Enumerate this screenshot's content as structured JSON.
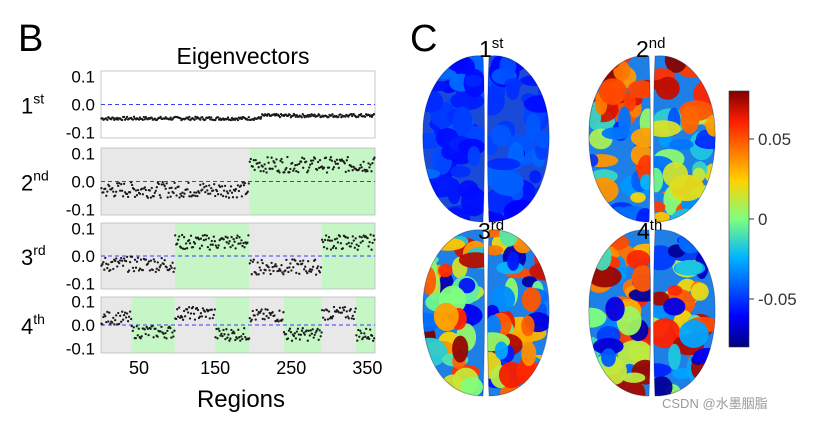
{
  "panel_b": {
    "letter": "B",
    "title": "Eigenvectors",
    "xlabel": "Regions"
  },
  "panel_c": {
    "letter": "C",
    "colorbar": {
      "ticks": [
        "0.05",
        "0",
        "-0.05"
      ],
      "range": [
        -0.08,
        0.08
      ]
    },
    "brain_labels": [
      {
        "num": "1",
        "sup": "st"
      },
      {
        "num": "2",
        "sup": "nd"
      },
      {
        "num": "3",
        "sup": "rd"
      },
      {
        "num": "4",
        "sup": "th"
      }
    ]
  },
  "watermark": "CSDN @水墨胭脂",
  "chart_data": {
    "type": "scatter",
    "title": "Eigenvectors",
    "xlabel": "Regions",
    "xlim": [
      0,
      360
    ],
    "x_ticks": [
      50,
      150,
      250,
      350
    ],
    "ylim": [
      -0.12,
      0.12
    ],
    "y_ticks": [
      "0.1",
      "0.0",
      "-0.1"
    ],
    "reference_line": 0.0,
    "subplots": [
      {
        "label": "1",
        "sup": "st",
        "segments": [
          {
            "x": [
              0,
              210
            ],
            "y_mean": -0.05,
            "band": "none"
          },
          {
            "x": [
              210,
              360
            ],
            "y_mean": -0.04,
            "band": "none"
          }
        ]
      },
      {
        "label": "2",
        "sup": "nd",
        "segments": [
          {
            "x": [
              0,
              195
            ],
            "y_mean": -0.03,
            "band": "gray"
          },
          {
            "x": [
              195,
              360
            ],
            "y_mean": 0.06,
            "band": "green"
          }
        ]
      },
      {
        "label": "3",
        "sup": "rd",
        "segments": [
          {
            "x": [
              0,
              97
            ],
            "y_mean": -0.03,
            "band": "gray"
          },
          {
            "x": [
              97,
              195
            ],
            "y_mean": 0.05,
            "band": "green"
          },
          {
            "x": [
              195,
              290
            ],
            "y_mean": -0.04,
            "band": "gray"
          },
          {
            "x": [
              290,
              360
            ],
            "y_mean": 0.05,
            "band": "green"
          }
        ]
      },
      {
        "label": "4",
        "sup": "th",
        "segments": [
          {
            "x": [
              0,
              40
            ],
            "y_mean": 0.03,
            "band": "gray"
          },
          {
            "x": [
              40,
              97
            ],
            "y_mean": -0.03,
            "band": "green"
          },
          {
            "x": [
              97,
              150
            ],
            "y_mean": 0.05,
            "band": "gray"
          },
          {
            "x": [
              150,
              195
            ],
            "y_mean": -0.04,
            "band": "green"
          },
          {
            "x": [
              195,
              240
            ],
            "y_mean": 0.04,
            "band": "gray"
          },
          {
            "x": [
              240,
              290
            ],
            "y_mean": -0.04,
            "band": "green"
          },
          {
            "x": [
              290,
              335
            ],
            "y_mean": 0.05,
            "band": "gray"
          },
          {
            "x": [
              335,
              360
            ],
            "y_mean": -0.04,
            "band": "green"
          }
        ]
      }
    ]
  }
}
